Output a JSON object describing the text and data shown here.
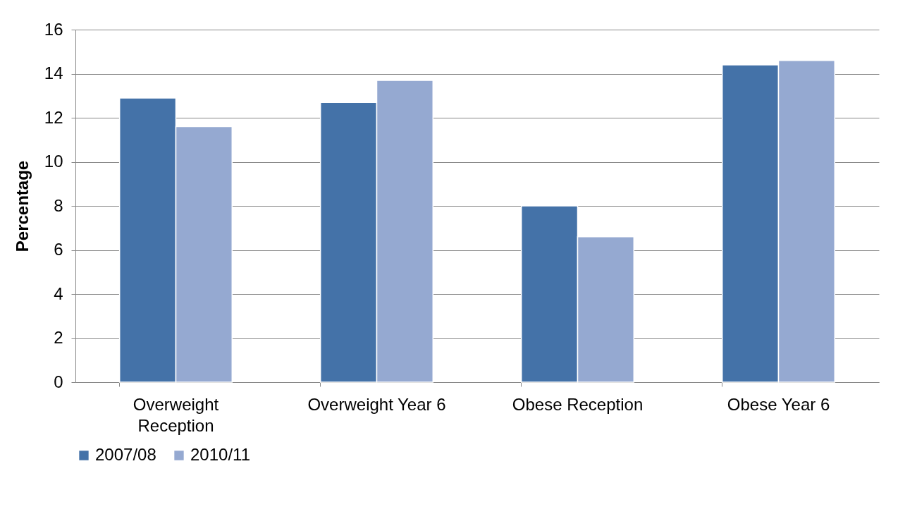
{
  "chart_data": {
    "type": "bar",
    "ylabel": "Percentage",
    "categories": [
      "Overweight Reception",
      "Overweight Year 6",
      "Obese Reception",
      "Obese Year 6"
    ],
    "series": [
      {
        "name": "2007/08",
        "color": "#4472a8",
        "values": [
          12.9,
          12.7,
          8.0,
          14.4
        ]
      },
      {
        "name": "2010/11",
        "color": "#95a9d1",
        "values": [
          11.6,
          13.7,
          6.6,
          14.6
        ]
      }
    ],
    "ylim": [
      0,
      16
    ],
    "yticks": [
      0,
      2,
      4,
      6,
      8,
      10,
      12,
      14,
      16
    ],
    "grid": "y",
    "legend": "bottom"
  }
}
